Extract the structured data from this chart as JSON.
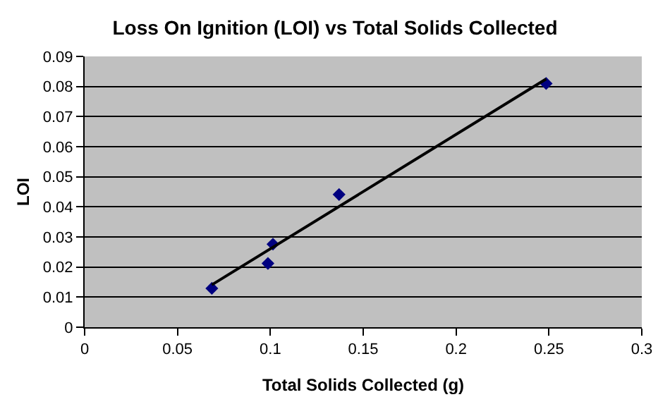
{
  "chart_data": {
    "type": "scatter",
    "title": "Loss On Ignition (LOI) vs Total Solids Collected",
    "xlabel": "Total Solids Collected (g)",
    "ylabel": "LOI",
    "series": [
      {
        "color": "#000080",
        "marker": "diamond",
        "x": [
          0.0685,
          0.0987,
          0.1014,
          0.137,
          0.2485
        ],
        "values": [
          0.0129,
          0.0212,
          0.0276,
          0.0441,
          0.081
        ]
      },
      {
        "type": "line",
        "color": "#000000",
        "marker": "none",
        "x": [
          0.0685,
          0.2485
        ],
        "values": [
          0.0141,
          0.0825
        ]
      }
    ],
    "xlim": [
      0,
      0.3
    ],
    "xticks": [
      0,
      0.05,
      0.1,
      0.15,
      0.2,
      0.25,
      0.3
    ],
    "ylim": [
      0,
      0.09
    ],
    "yticks": [
      0,
      0.01,
      0.02,
      0.03,
      0.04,
      0.05,
      0.06,
      0.07,
      0.08,
      0.09
    ],
    "grid": "y",
    "legend": false
  }
}
